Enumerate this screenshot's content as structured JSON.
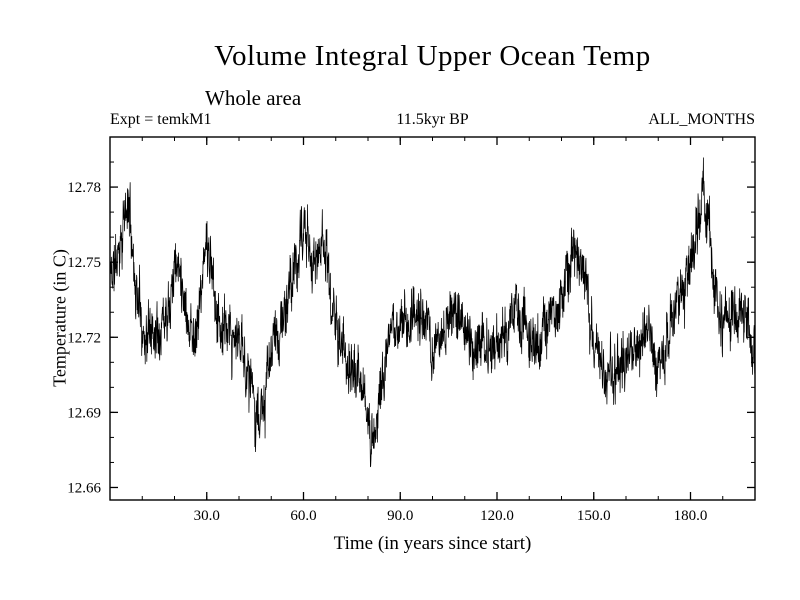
{
  "chart_data": {
    "type": "line",
    "title": "Volume Integral Upper Ocean Temp",
    "subtitle": "Whole area",
    "annotations": {
      "experiment": "Expt = temkM1",
      "period": "11.5kyr BP",
      "months": "ALL_MONTHS"
    },
    "xlabel": "Time (in years since start)",
    "ylabel": "Temperature (in C)",
    "xlim": [
      0,
      200
    ],
    "ylim": [
      12.655,
      12.8
    ],
    "grid": false,
    "legend": "none",
    "line_color": "#000000",
    "xticks": {
      "values": [
        30,
        60,
        90,
        120,
        150,
        180
      ],
      "labels": [
        "30.0",
        "60.0",
        "90.0",
        "120.0",
        "150.0",
        "180.0"
      ],
      "minor_step": 10
    },
    "yticks": {
      "values": [
        12.66,
        12.69,
        12.72,
        12.75,
        12.78
      ],
      "labels": [
        "12.66",
        "12.69",
        "12.72",
        "12.75",
        "12.78"
      ],
      "minor_step": 0.01
    },
    "series": [
      {
        "name": "upper_ocean_temperature",
        "sampling": "monthly",
        "points_per_year": 12,
        "envelope_anchors": [
          [
            0,
            12.745
          ],
          [
            2,
            12.75
          ],
          [
            4,
            12.765
          ],
          [
            6,
            12.772
          ],
          [
            8,
            12.74
          ],
          [
            11,
            12.72
          ],
          [
            14,
            12.725
          ],
          [
            17,
            12.73
          ],
          [
            20,
            12.75
          ],
          [
            22,
            12.748
          ],
          [
            24,
            12.73
          ],
          [
            26,
            12.72
          ],
          [
            28,
            12.735
          ],
          [
            30,
            12.758
          ],
          [
            32,
            12.74
          ],
          [
            34,
            12.725
          ],
          [
            36,
            12.72
          ],
          [
            38,
            12.715
          ],
          [
            40,
            12.72
          ],
          [
            42,
            12.71
          ],
          [
            44,
            12.7
          ],
          [
            46,
            12.688
          ],
          [
            48,
            12.692
          ],
          [
            50,
            12.715
          ],
          [
            52,
            12.72
          ],
          [
            54,
            12.728
          ],
          [
            56,
            12.74
          ],
          [
            58,
            12.75
          ],
          [
            60,
            12.762
          ],
          [
            62,
            12.755
          ],
          [
            64,
            12.748
          ],
          [
            66,
            12.765
          ],
          [
            68,
            12.74
          ],
          [
            70,
            12.725
          ],
          [
            72,
            12.715
          ],
          [
            74,
            12.71
          ],
          [
            76,
            12.705
          ],
          [
            78,
            12.7
          ],
          [
            80,
            12.684
          ],
          [
            82,
            12.682
          ],
          [
            84,
            12.7
          ],
          [
            86,
            12.715
          ],
          [
            88,
            12.72
          ],
          [
            90,
            12.728
          ],
          [
            92,
            12.725
          ],
          [
            94,
            12.732
          ],
          [
            96,
            12.73
          ],
          [
            98,
            12.72
          ],
          [
            100,
            12.715
          ],
          [
            102,
            12.72
          ],
          [
            104,
            12.722
          ],
          [
            106,
            12.728
          ],
          [
            108,
            12.73
          ],
          [
            110,
            12.722
          ],
          [
            112,
            12.715
          ],
          [
            114,
            12.718
          ],
          [
            116,
            12.722
          ],
          [
            118,
            12.715
          ],
          [
            120,
            12.718
          ],
          [
            122,
            12.72
          ],
          [
            124,
            12.728
          ],
          [
            126,
            12.73
          ],
          [
            128,
            12.722
          ],
          [
            130,
            12.716
          ],
          [
            132,
            12.718
          ],
          [
            134,
            12.72
          ],
          [
            136,
            12.726
          ],
          [
            138,
            12.732
          ],
          [
            140,
            12.738
          ],
          [
            142,
            12.745
          ],
          [
            144,
            12.755
          ],
          [
            146,
            12.75
          ],
          [
            148,
            12.735
          ],
          [
            150,
            12.72
          ],
          [
            152,
            12.712
          ],
          [
            154,
            12.705
          ],
          [
            156,
            12.7
          ],
          [
            158,
            12.706
          ],
          [
            160,
            12.71
          ],
          [
            162,
            12.712
          ],
          [
            164,
            12.716
          ],
          [
            166,
            12.72
          ],
          [
            168,
            12.716
          ],
          [
            170,
            12.714
          ],
          [
            172,
            12.718
          ],
          [
            174,
            12.724
          ],
          [
            176,
            12.73
          ],
          [
            178,
            12.738
          ],
          [
            180,
            12.75
          ],
          [
            182,
            12.768
          ],
          [
            184,
            12.778
          ],
          [
            186,
            12.756
          ],
          [
            188,
            12.735
          ],
          [
            190,
            12.722
          ],
          [
            192,
            12.726
          ],
          [
            194,
            12.736
          ],
          [
            196,
            12.732
          ],
          [
            198,
            12.72
          ],
          [
            200,
            12.705
          ]
        ],
        "noise": {
          "seed": 11,
          "ar_coeff": 0.8,
          "ar_sigma": 0.0045,
          "jitter": 0.0085
        }
      }
    ]
  }
}
